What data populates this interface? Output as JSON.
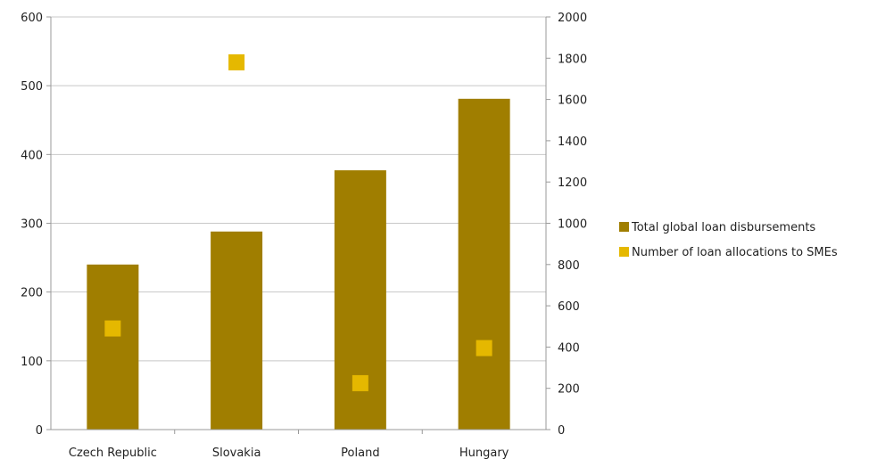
{
  "chart_data": {
    "type": "bar",
    "categories": [
      "Czech Republic",
      "Slovakia",
      "Poland",
      "Hungary"
    ],
    "series": [
      {
        "name": "Total global loan disbursements",
        "kind": "bar",
        "axis": "left",
        "color": "#a07e00",
        "values": [
          240,
          288,
          377,
          481
        ]
      },
      {
        "name": "Number of loan allocations to SMEs",
        "kind": "scatter",
        "axis": "right",
        "color": "#e5b800",
        "values": [
          490,
          1780,
          225,
          395
        ]
      }
    ],
    "ylim_left": [
      0,
      600
    ],
    "yticks_left": [
      "0",
      "100",
      "200",
      "300",
      "400",
      "500",
      "600"
    ],
    "ylim_right": [
      0,
      2000
    ],
    "yticks_right": [
      "0",
      "200",
      "400",
      "600",
      "800",
      "1000",
      "1200",
      "1400",
      "1600",
      "1800",
      "2000"
    ],
    "grid": true,
    "legend_position": "right"
  }
}
